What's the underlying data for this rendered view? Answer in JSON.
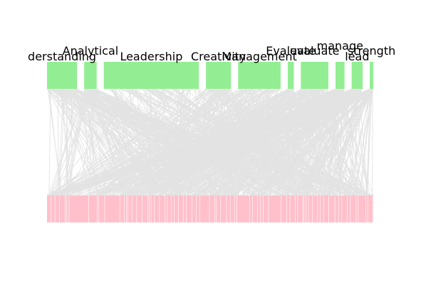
{
  "chart_data": {
    "type": "bipartite",
    "colors": {
      "top_bar": "#93ee93",
      "bottom_bar": "#ffc0cb",
      "edge": "#e3e3e3",
      "separator": "#ffffff",
      "label": "#000000"
    },
    "top_categories": [
      {
        "label": "derstanding",
        "weight": 6
      },
      {
        "label": "Analytical",
        "weight": 2.5
      },
      {
        "label": "Leadership",
        "weight": 19
      },
      {
        "label": "Creativity",
        "weight": 5
      },
      {
        "label": "Management",
        "weight": 8.5
      },
      {
        "label": "Evaluate",
        "weight": 1.2
      },
      {
        "label": "evaluate",
        "weight": 5.5
      },
      {
        "label": "manage",
        "weight": 1.8
      },
      {
        "label": "lead",
        "weight": 2.2
      },
      {
        "label": "strength",
        "weight": 0.7
      }
    ],
    "bottom_segment_count": 70,
    "edge_count": 900
  }
}
